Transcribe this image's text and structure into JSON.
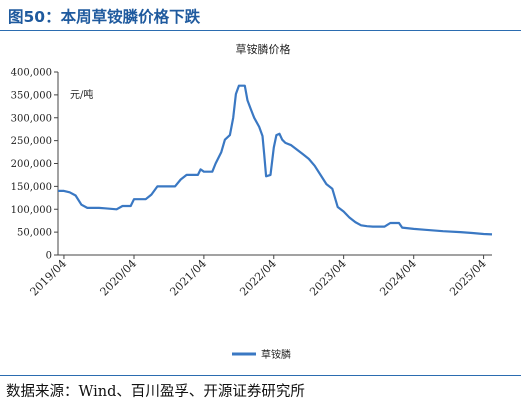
{
  "figure": {
    "title": "图50：本周草铵膦价格下跌",
    "source": "数据来源：Wind、百川盈孚、开源证券研究所"
  },
  "chart_data": {
    "type": "line",
    "title": "草铵膦价格",
    "unit_label": "元/吨",
    "ylim": [
      0,
      400000
    ],
    "yticks": [
      0,
      50000,
      100000,
      150000,
      200000,
      250000,
      300000,
      350000,
      400000
    ],
    "ytick_labels": [
      "0",
      "50,000",
      "100,000",
      "150,000",
      "200,000",
      "250,000",
      "300,000",
      "350,000",
      "400,000"
    ],
    "xlim": [
      "2019-03-01",
      "2025-05-15"
    ],
    "xticks": [
      "2019-04-01",
      "2020-04-01",
      "2021-04-01",
      "2022-04-01",
      "2023-04-01",
      "2024-04-01",
      "2025-04-01"
    ],
    "xtick_labels": [
      "2019/04",
      "2020/04",
      "2021/04",
      "2022/04",
      "2023/04",
      "2024/04",
      "2025/04"
    ],
    "grid": false,
    "legend_position": "bottom-center",
    "series": [
      {
        "name": "草铵膦",
        "color": "#3a78c3",
        "points": [
          [
            "2019-03-01",
            140000
          ],
          [
            "2019-04-01",
            140000
          ],
          [
            "2019-05-01",
            137000
          ],
          [
            "2019-06-01",
            130000
          ],
          [
            "2019-07-01",
            110000
          ],
          [
            "2019-08-01",
            103000
          ],
          [
            "2019-10-01",
            103000
          ],
          [
            "2019-11-01",
            102000
          ],
          [
            "2020-01-01",
            100000
          ],
          [
            "2020-02-01",
            107000
          ],
          [
            "2020-03-15",
            107000
          ],
          [
            "2020-04-01",
            122000
          ],
          [
            "2020-06-01",
            122000
          ],
          [
            "2020-07-01",
            132000
          ],
          [
            "2020-08-01",
            150000
          ],
          [
            "2020-11-01",
            150000
          ],
          [
            "2020-12-01",
            165000
          ],
          [
            "2021-01-01",
            175000
          ],
          [
            "2021-03-01",
            175000
          ],
          [
            "2021-03-15",
            187000
          ],
          [
            "2021-04-01",
            182000
          ],
          [
            "2021-05-15",
            182000
          ],
          [
            "2021-06-01",
            200000
          ],
          [
            "2021-07-01",
            225000
          ],
          [
            "2021-07-20",
            252000
          ],
          [
            "2021-08-15",
            262000
          ],
          [
            "2021-09-01",
            300000
          ],
          [
            "2021-09-15",
            352000
          ],
          [
            "2021-10-01",
            370000
          ],
          [
            "2021-11-01",
            370000
          ],
          [
            "2021-11-15",
            338000
          ],
          [
            "2021-12-01",
            320000
          ],
          [
            "2021-12-20",
            300000
          ],
          [
            "2022-01-15",
            280000
          ],
          [
            "2022-02-01",
            260000
          ],
          [
            "2022-02-10",
            220000
          ],
          [
            "2022-02-20",
            172000
          ],
          [
            "2022-03-15",
            175000
          ],
          [
            "2022-04-01",
            235000
          ],
          [
            "2022-04-15",
            262000
          ],
          [
            "2022-05-01",
            265000
          ],
          [
            "2022-05-15",
            252000
          ],
          [
            "2022-06-01",
            245000
          ],
          [
            "2022-07-01",
            240000
          ],
          [
            "2022-08-01",
            230000
          ],
          [
            "2022-09-01",
            220000
          ],
          [
            "2022-10-01",
            210000
          ],
          [
            "2022-11-01",
            195000
          ],
          [
            "2022-12-01",
            175000
          ],
          [
            "2023-01-01",
            155000
          ],
          [
            "2023-02-01",
            145000
          ],
          [
            "2023-03-01",
            105000
          ],
          [
            "2023-04-01",
            95000
          ],
          [
            "2023-05-01",
            82000
          ],
          [
            "2023-06-01",
            72000
          ],
          [
            "2023-07-01",
            65000
          ],
          [
            "2023-08-01",
            63000
          ],
          [
            "2023-09-01",
            62000
          ],
          [
            "2023-11-01",
            62000
          ],
          [
            "2023-12-01",
            70000
          ],
          [
            "2024-01-15",
            70000
          ],
          [
            "2024-02-01",
            60000
          ],
          [
            "2024-04-01",
            57000
          ],
          [
            "2024-06-01",
            55000
          ],
          [
            "2024-09-01",
            52000
          ],
          [
            "2024-12-01",
            50000
          ],
          [
            "2025-02-01",
            48000
          ],
          [
            "2025-04-01",
            46000
          ],
          [
            "2025-05-15",
            45000
          ]
        ]
      }
    ]
  }
}
